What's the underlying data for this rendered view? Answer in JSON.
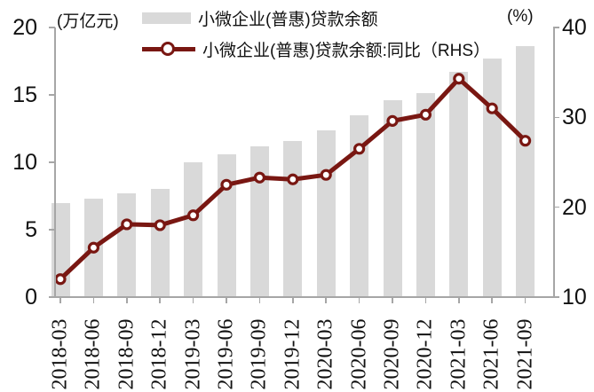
{
  "chart": {
    "left_unit_label": "(万亿元)",
    "right_unit_label": "(%)",
    "legend": [
      {
        "label": "小微企业(普惠)贷款余额",
        "swatch": "gray-bar"
      },
      {
        "label": "小微企业(普惠)贷款余额:同比（RHS）",
        "swatch": "maroon-line-with-marker"
      }
    ]
  },
  "chart_data": {
    "type": "bar+line",
    "categories": [
      "2018-03",
      "2018-06",
      "2018-09",
      "2018-12",
      "2019-03",
      "2019-06",
      "2019-09",
      "2019-12",
      "2020-03",
      "2020-06",
      "2020-09",
      "2020-12",
      "2021-03",
      "2021-06",
      "2021-09"
    ],
    "series": [
      {
        "name": "小微企业(普惠)贷款余额",
        "type": "bar",
        "axis": "left",
        "unit": "万亿元",
        "values": [
          7.0,
          7.3,
          7.7,
          8.0,
          10.0,
          10.6,
          11.2,
          11.6,
          12.4,
          13.5,
          14.6,
          15.1,
          16.7,
          17.7,
          18.6
        ]
      },
      {
        "name": "小微企业(普惠)贷款余额:同比（RHS）",
        "type": "line",
        "axis": "right",
        "unit": "%",
        "values": [
          12.0,
          15.5,
          18.1,
          18.0,
          19.1,
          22.5,
          23.3,
          23.1,
          23.6,
          26.5,
          29.6,
          30.3,
          34.3,
          31.0,
          27.4
        ]
      }
    ],
    "left_axis": {
      "label": "(万亿元)",
      "min": 0,
      "max": 20,
      "ticks": [
        0,
        5,
        10,
        15,
        20
      ]
    },
    "right_axis": {
      "label": "(%)",
      "min": 10,
      "max": 40,
      "ticks": [
        10,
        20,
        30,
        40
      ]
    },
    "legend_position": "top",
    "grid": false,
    "colors": {
      "bar": "#d9d9d9",
      "line": "#791712",
      "marker_fill": "#ffffff",
      "axis": "#a6a6a6",
      "text": "#111111"
    }
  }
}
